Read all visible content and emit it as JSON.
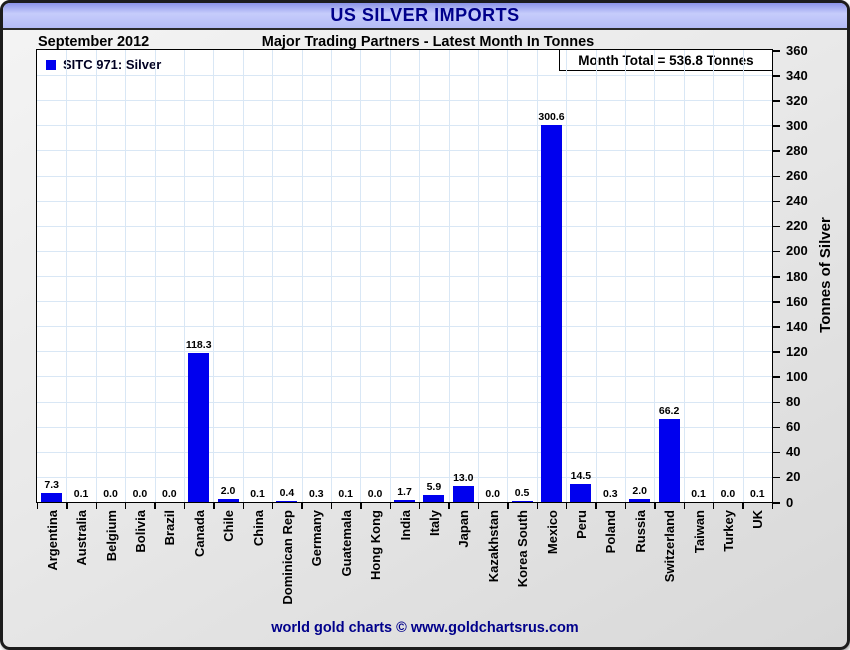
{
  "header": {
    "title": "US SILVER IMPORTS"
  },
  "subtitle": {
    "date": "September 2012",
    "text": "Major Trading Partners - Latest Month In Tonnes"
  },
  "legend": {
    "label": "SITC 971: Silver",
    "swatch_color": "#0000ee"
  },
  "annotation": {
    "month_total": "Month Total = 536.8 Tonnes"
  },
  "footer": {
    "credit": "world gold charts © www.goldchartsrus.com"
  },
  "chart_data": {
    "type": "bar",
    "title": "US SILVER IMPORTS",
    "xlabel": "",
    "ylabel": "Tonnes of Silver",
    "ylim": [
      0,
      360
    ],
    "ytick_step": 20,
    "grid": true,
    "legend_position": "top-left",
    "bar_color": "#0000ee",
    "grid_color": "#d9e7f5",
    "categories": [
      "Argentina",
      "Australia",
      "Belgium",
      "Bolivia",
      "Brazil",
      "Canada",
      "Chile",
      "China",
      "Dominican Rep",
      "Germany",
      "Guatemala",
      "Hong Kong",
      "India",
      "Italy",
      "Japan",
      "Kazakhstan",
      "Korea South",
      "Mexico",
      "Peru",
      "Poland",
      "Russia",
      "Switzerland",
      "Taiwan",
      "Turkey",
      "UK"
    ],
    "values": [
      7.3,
      0.1,
      0.0,
      0.0,
      0.0,
      118.3,
      2.0,
      0.1,
      0.4,
      0.3,
      0.1,
      0.0,
      1.7,
      5.9,
      13.0,
      0.0,
      0.5,
      300.6,
      14.5,
      0.3,
      2.0,
      66.2,
      0.1,
      0.0,
      0.1
    ]
  }
}
